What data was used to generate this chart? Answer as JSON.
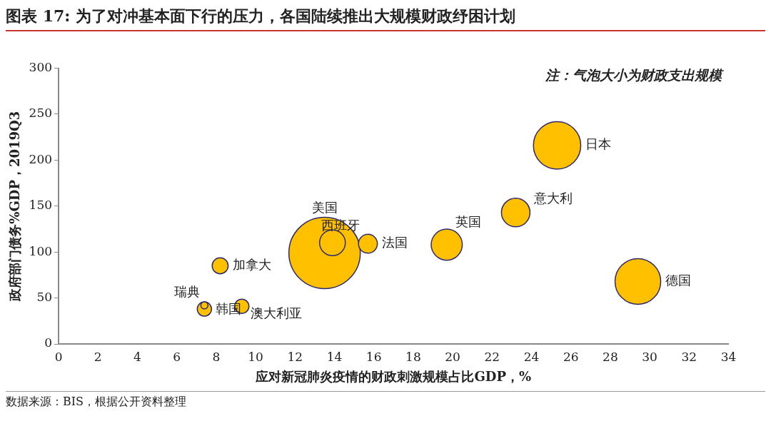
{
  "chart_data": {
    "type": "bubble",
    "title": "图表 17: 为了对冲基本面下行的压力，各国陆续推出大规模财政纾困计划",
    "xlabel": "应对新冠肺炎疫情的财政刺激规模占比GDP，%",
    "ylabel": "政府部门债务%GDP，2019Q3",
    "annotations": [
      "注：气泡大小为财政支出规模",
      "数据来源：BIS，根据公开资料整理"
    ],
    "xlim": [
      0,
      34
    ],
    "xticks": [
      0,
      2,
      4,
      6,
      8,
      10,
      12,
      14,
      16,
      18,
      20,
      22,
      24,
      26,
      28,
      30,
      32,
      34
    ],
    "ylim": [
      0,
      300
    ],
    "yticks": [
      0,
      50,
      100,
      150,
      200,
      250,
      300
    ],
    "grid": false,
    "legend": false,
    "series": [
      {
        "name": "日本",
        "color": "#ffc000",
        "x": [
          25.3
        ],
        "values": [
          216
        ],
        "sizes": [
          0.44
        ]
      },
      {
        "name": "意大利",
        "color": "#ffc000",
        "x": [
          23.2
        ],
        "values": [
          143
        ],
        "sizes": [
          0.16
        ]
      },
      {
        "name": "英国",
        "color": "#ffc000",
        "x": [
          19.7
        ],
        "values": [
          108
        ],
        "sizes": [
          0.19
        ]
      },
      {
        "name": "德国",
        "color": "#ffc000",
        "x": [
          29.4
        ],
        "values": [
          68
        ],
        "sizes": [
          0.41
        ]
      },
      {
        "name": "美国",
        "color": "#ffc000",
        "x": [
          13.5
        ],
        "values": [
          99
        ],
        "sizes": [
          1
        ]
      },
      {
        "name": "西班牙",
        "color": "#ffc000",
        "x": [
          13.9
        ],
        "values": [
          110
        ],
        "sizes": [
          0.13
        ]
      },
      {
        "name": "法国",
        "color": "#ffc000",
        "x": [
          15.7
        ],
        "values": [
          109
        ],
        "sizes": [
          0.07
        ]
      },
      {
        "name": "加拿大",
        "color": "#ffc000",
        "x": [
          8.2
        ],
        "values": [
          85
        ],
        "sizes": [
          0.05
        ]
      },
      {
        "name": "瑞典",
        "color": "#ffc000",
        "x": [
          7.4
        ],
        "values": [
          42
        ],
        "sizes": [
          0.01
        ]
      },
      {
        "name": "韩国",
        "color": "#ffc000",
        "x": [
          7.4
        ],
        "values": [
          38
        ],
        "sizes": [
          0.04
        ]
      },
      {
        "name": "澳大利亚",
        "color": "#ffc000",
        "x": [
          9.3
        ],
        "values": [
          41
        ],
        "sizes": [
          0.04
        ]
      }
    ]
  }
}
